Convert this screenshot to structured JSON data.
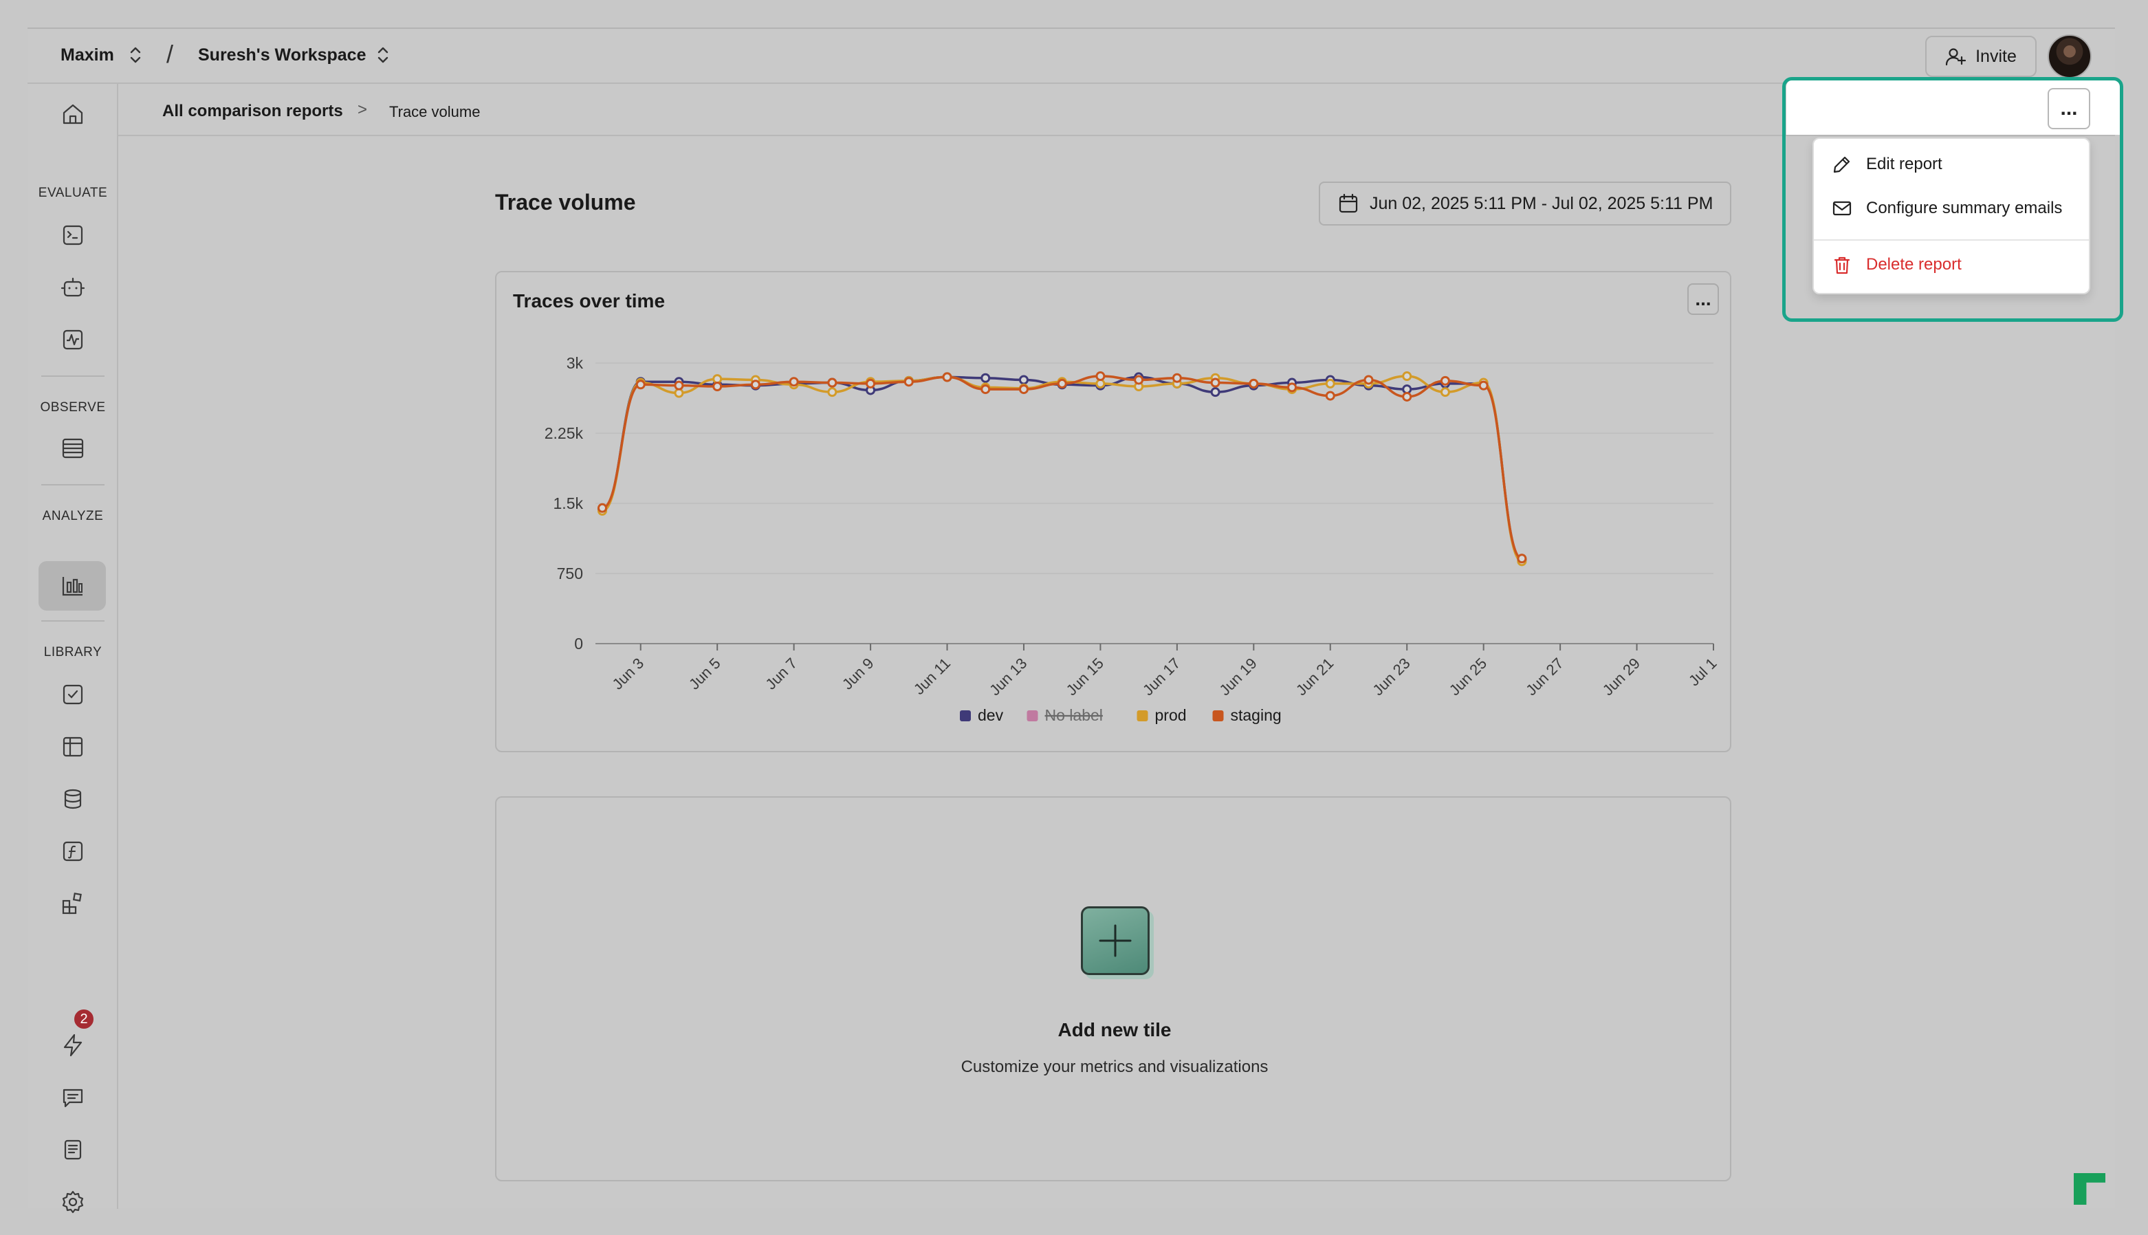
{
  "topbar": {
    "org_name": "Maxim",
    "separator": "/",
    "workspace_name": "Suresh's Workspace",
    "invite_label": "Invite"
  },
  "sidebar": {
    "sections": [
      {
        "label": "EVALUATE"
      },
      {
        "label": "OBSERVE"
      },
      {
        "label": "ANALYZE"
      },
      {
        "label": "LIBRARY"
      }
    ],
    "notification_count": "2"
  },
  "breadcrumb": {
    "parent": "All comparison reports",
    "separator": ">",
    "current": "Trace volume"
  },
  "page": {
    "title": "Trace volume",
    "date_range": "Jun 02, 2025 5:11 PM - Jul 02, 2025 5:11 PM"
  },
  "chart_card": {
    "title": "Traces over time",
    "menu_label": "..."
  },
  "chart_data": {
    "type": "line",
    "x_labels": [
      "Jun 3",
      "Jun 5",
      "Jun 7",
      "Jun 9",
      "Jun 11",
      "Jun 13",
      "Jun 15",
      "Jun 17",
      "Jun 19",
      "Jun 21",
      "Jun 23",
      "Jun 25",
      "Jun 27",
      "Jun 29",
      "Jul 1"
    ],
    "y_ticks": [
      "0",
      "750",
      "1.5k",
      "2.25k",
      "3k"
    ],
    "ylim": [
      0,
      3000
    ],
    "x_start_label": "Jun 2",
    "x_end_label": "Jul 1",
    "series": [
      {
        "name": "dev",
        "color": "#3f3a78",
        "hidden": false,
        "values": [
          1440,
          2800,
          2800,
          2770,
          2760,
          2780,
          2790,
          2710,
          2810,
          2850,
          2840,
          2820,
          2770,
          2760,
          2850,
          2780,
          2690,
          2760,
          2790,
          2820,
          2760,
          2720,
          2780,
          2780,
          900
        ]
      },
      {
        "name": "No label",
        "color": "#c07aa0",
        "hidden": true,
        "values": []
      },
      {
        "name": "prod",
        "color": "#d39b2a",
        "hidden": false,
        "values": [
          1420,
          2790,
          2680,
          2830,
          2820,
          2770,
          2690,
          2800,
          2810,
          2850,
          2740,
          2730,
          2800,
          2780,
          2750,
          2780,
          2840,
          2780,
          2720,
          2780,
          2780,
          2860,
          2690,
          2790,
          880
        ]
      },
      {
        "name": "staging",
        "color": "#c8561e",
        "hidden": false,
        "values": [
          1450,
          2770,
          2760,
          2750,
          2770,
          2800,
          2790,
          2780,
          2800,
          2850,
          2720,
          2720,
          2780,
          2860,
          2820,
          2840,
          2790,
          2780,
          2740,
          2650,
          2820,
          2640,
          2810,
          2760,
          910
        ]
      }
    ]
  },
  "add_tile": {
    "title": "Add new tile",
    "subtitle": "Customize your metrics and visualizations"
  },
  "report_menu": {
    "trigger_label": "...",
    "items": [
      {
        "label": "Edit report",
        "icon": "pencil-icon"
      },
      {
        "label": "Configure summary emails",
        "icon": "mail-icon"
      },
      {
        "label": "Delete report",
        "icon": "trash-icon",
        "danger": true
      }
    ]
  },
  "colors": {
    "highlight": "#1aa48a",
    "danger": "#d92d2d"
  }
}
